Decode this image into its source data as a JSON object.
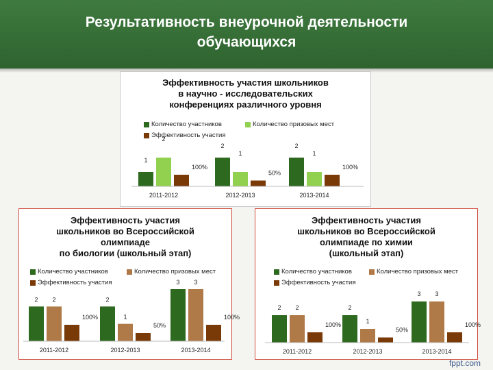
{
  "header": {
    "title_line1": "Результативность внеурочной деятельности",
    "title_line2": "обучающихся",
    "bg_color": "#2e632f"
  },
  "colors": {
    "participants": "#2d6a1f",
    "prize_winners": "#92d050",
    "prize_winners_alt": "#b07a48",
    "efficiency": "#7a3a08"
  },
  "footer": {
    "brand": "fppt.com"
  },
  "chart_data": [
    {
      "type": "bar",
      "title_lines": [
        "Эффективность участия школьников",
        "в научно - исследовательских",
        "конференциях различного уровня"
      ],
      "categories": [
        "2011-2012",
        "2012-2013",
        "2013-2014"
      ],
      "legend_position": "top",
      "series": [
        {
          "name": "Количество участников",
          "values": [
            1,
            2,
            2
          ],
          "labels": [
            "1",
            "2",
            "2"
          ],
          "color": "#2d6a1f"
        },
        {
          "name": "Количество призовых мест",
          "values": [
            2,
            1,
            1
          ],
          "labels": [
            "2",
            "1",
            "1"
          ],
          "color": "#92d050"
        },
        {
          "name": "Эффективность участия",
          "values": [
            1.0,
            0.5,
            1.0
          ],
          "labels": [
            "100%",
            "50%",
            "100%"
          ],
          "color": "#7a3a08"
        }
      ]
    },
    {
      "type": "bar",
      "title_lines": [
        "Эффективность участия",
        "школьников во Всероссийской",
        "олимпиаде",
        "по биологии (школьный этап)"
      ],
      "categories": [
        "2011-2012",
        "2012-2013",
        "2013-2014"
      ],
      "legend_position": "top",
      "series": [
        {
          "name": "Количество участников",
          "values": [
            2,
            2,
            3
          ],
          "labels": [
            "2",
            "2",
            "3"
          ],
          "color": "#2d6a1f"
        },
        {
          "name": "Количество призовых мест",
          "values": [
            2,
            1,
            3
          ],
          "labels": [
            "2",
            "1",
            "3"
          ],
          "color": "#b07a48"
        },
        {
          "name": "Эффективность участия",
          "values": [
            1.0,
            0.5,
            1.0
          ],
          "labels": [
            "100%",
            "50%",
            "100%"
          ],
          "color": "#7a3a08"
        }
      ]
    },
    {
      "type": "bar",
      "title_lines": [
        "Эффективность  участия",
        "школьников во Всероссийской",
        "олимпиаде по химии",
        "(школьный этап)"
      ],
      "categories": [
        "2011-2012",
        "2012-2013",
        "2013-2014"
      ],
      "legend_position": "top",
      "series": [
        {
          "name": "Количество участников",
          "values": [
            2,
            2,
            3
          ],
          "labels": [
            "2",
            "2",
            "3"
          ],
          "color": "#2d6a1f"
        },
        {
          "name": "Количество призовых мест",
          "values": [
            2,
            1,
            3
          ],
          "labels": [
            "2",
            "1",
            "3"
          ],
          "color": "#b07a48"
        },
        {
          "name": "Эффективность участия",
          "values": [
            1.0,
            0.5,
            1.0
          ],
          "labels": [
            "100%",
            "50%",
            "100%"
          ],
          "color": "#7a3a08"
        }
      ]
    }
  ]
}
